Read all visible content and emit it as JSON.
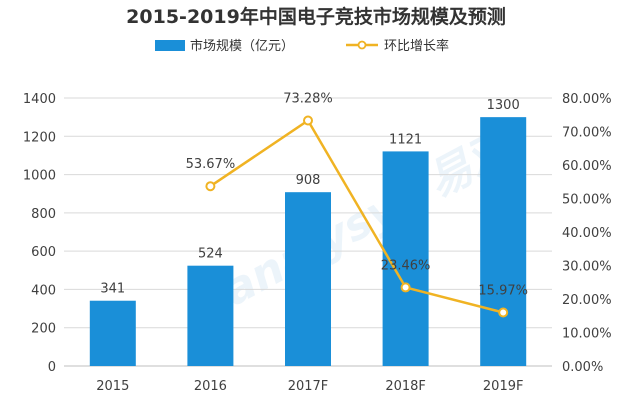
{
  "chart_data": {
    "type": "bar+line",
    "title": "2015-2019年中国电子竞技市场规模及预测",
    "categories": [
      "2015",
      "2016",
      "2017F",
      "2018F",
      "2019F"
    ],
    "series": [
      {
        "name": "市场规模（亿元）",
        "type": "bar",
        "axis": "left",
        "values": [
          341,
          524,
          908,
          1121,
          1300
        ],
        "labels": [
          "341",
          "524",
          "908",
          "1121",
          "1300"
        ]
      },
      {
        "name": "环比增长率",
        "type": "line",
        "axis": "right",
        "values": [
          null,
          53.67,
          73.28,
          23.46,
          15.97
        ],
        "labels": [
          "",
          "53.67%",
          "73.28%",
          "23.46%",
          "15.97%"
        ]
      }
    ],
    "y_left": {
      "range": [
        0,
        1400
      ],
      "ticks": [
        "0",
        "200",
        "400",
        "600",
        "800",
        "1000",
        "1200",
        "1400"
      ]
    },
    "y_right": {
      "range": [
        0,
        80
      ],
      "ticks": [
        "0.00%",
        "10.00%",
        "20.00%",
        "30.00%",
        "40.00%",
        "50.00%",
        "60.00%",
        "70.00%",
        "80.00%"
      ]
    },
    "grid": true,
    "legend_position": "top-center",
    "colors": {
      "bar": "#1a8fd8",
      "line": "#f0b323",
      "marker_fill": "#ffffff"
    },
    "watermark": "analysys 易观"
  }
}
